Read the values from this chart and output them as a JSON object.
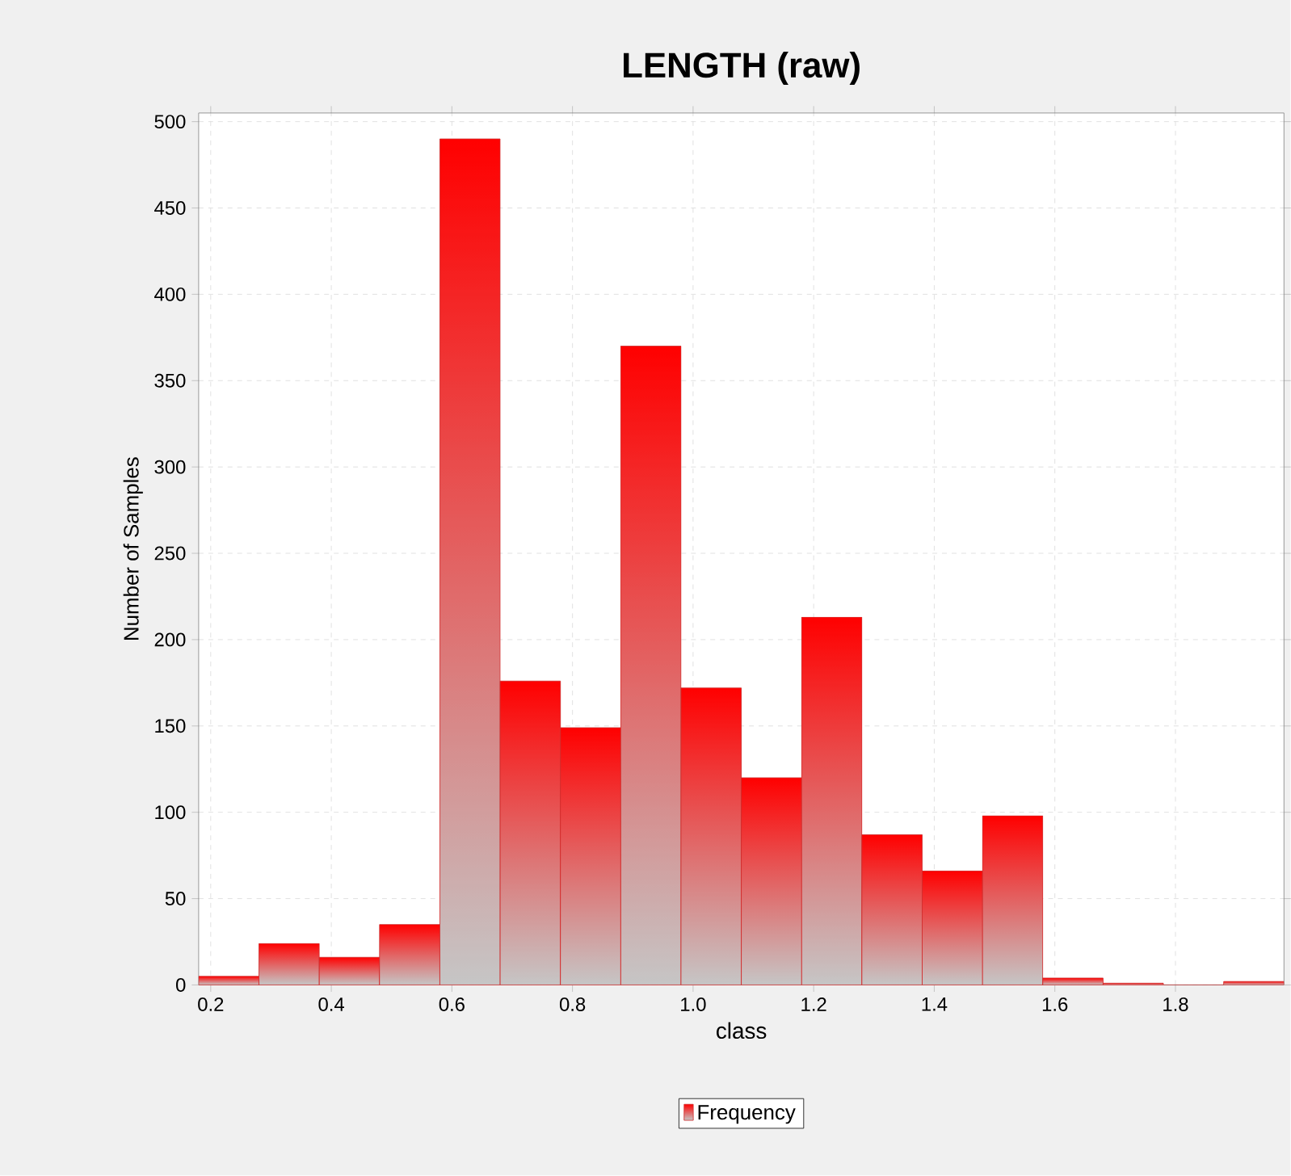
{
  "chart_data": {
    "type": "histogram",
    "title": "LENGTH (raw)",
    "xlabel": "class",
    "ylabel": "Number of Samples",
    "bins": [
      0.18,
      0.28,
      0.38,
      0.48,
      0.58,
      0.68,
      0.78,
      0.88,
      0.98,
      1.08,
      1.18,
      1.28,
      1.38,
      1.48,
      1.58,
      1.68,
      1.78,
      1.88,
      1.98
    ],
    "series": [
      {
        "name": "Frequency",
        "color": "#ff0000",
        "values": [
          5,
          24,
          16,
          35,
          490,
          176,
          149,
          370,
          172,
          120,
          213,
          87,
          66,
          98,
          4,
          1,
          0,
          2
        ]
      }
    ],
    "xlim": [
      0.18,
      1.98
    ],
    "ylim": [
      0,
      505
    ],
    "xticks": [
      {
        "value": 0.2,
        "label": "0.2"
      },
      {
        "value": 0.4,
        "label": "0.4"
      },
      {
        "value": 0.6,
        "label": "0.6"
      },
      {
        "value": 0.8,
        "label": "0.8"
      },
      {
        "value": 1.0,
        "label": "1.0"
      },
      {
        "value": 1.2,
        "label": "1.2"
      },
      {
        "value": 1.4,
        "label": "1.4"
      },
      {
        "value": 1.6,
        "label": "1.6"
      },
      {
        "value": 1.8,
        "label": "1.8"
      }
    ],
    "yticks": [
      0,
      50,
      100,
      150,
      200,
      250,
      300,
      350,
      400,
      450,
      500
    ],
    "grid": true,
    "legend": "bottom"
  }
}
